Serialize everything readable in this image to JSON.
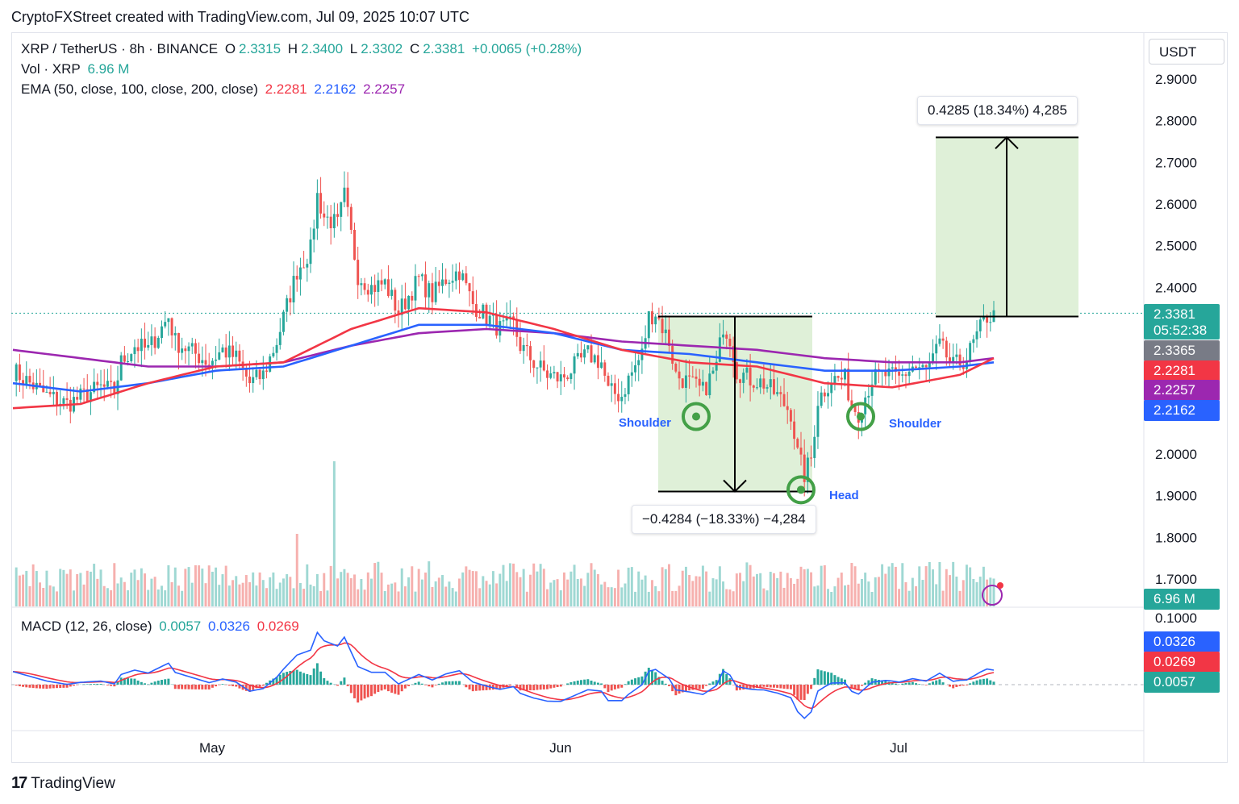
{
  "attribution": "CryptoFXStreet created with TradingView.com, Jul 09, 2025 10:07 UTC",
  "footer_logo": "TradingView",
  "currency_button": "USDT",
  "legend": {
    "symbol": "XRP / TetherUS · 8h · BINANCE",
    "o_label": "O",
    "o_value": "2.3315",
    "h_label": "H",
    "h_value": "2.3400",
    "l_label": "L",
    "l_value": "2.3302",
    "c_label": "C",
    "c_value": "2.3381",
    "change": "+0.0065 (+0.28%)",
    "vol_label": "Vol · XRP",
    "vol_value": "6.96 M",
    "ema_label": "EMA (50, close, 100, close, 200, close)",
    "ema50": "2.2281",
    "ema100": "2.2162",
    "ema200": "2.2257",
    "macd_label": "MACD (12, 26, close)",
    "macd_hist": "0.0057",
    "macd_line": "0.0326",
    "macd_signal": "0.0269"
  },
  "price_tags": {
    "last": "2.3381",
    "countdown": "05:52:38",
    "gray": "2.3365",
    "ema50": "2.2281",
    "ema200": "2.2257",
    "ema100": "2.2162",
    "volume": "6.96 M",
    "macd_line": "0.0326",
    "macd_signal": "0.0269",
    "macd_hist": "0.0057"
  },
  "callouts": {
    "up": "0.4285 (18.34%) 4,285",
    "down": "−0.4284 (−18.33%) −4,284"
  },
  "annotations": {
    "shoulder_left": "Shoulder",
    "shoulder_right": "Shoulder",
    "head": "Head"
  },
  "colors": {
    "up": "#26a69a",
    "down": "#ef5350",
    "ema50": "#f23645",
    "ema100": "#2962ff",
    "ema200": "#9c27b0",
    "macd_line": "#2962ff",
    "macd_signal": "#f23645",
    "zone_fill": "#dff0d8",
    "circle": "#43a047"
  },
  "chart_data": {
    "type": "candlestick",
    "pair": "XRP / TetherUS",
    "interval": "8h",
    "exchange": "BINANCE",
    "y_axis": {
      "ticks": [
        "2.9000",
        "2.8000",
        "2.7000",
        "2.6000",
        "2.5000",
        "2.4000",
        "2.3000",
        "2.2000",
        "2.1000",
        "2.0000",
        "1.9000",
        "1.8000",
        "1.7000"
      ],
      "range": [
        1.68,
        2.96
      ]
    },
    "macd_axis": {
      "ticks": [
        "0.1000"
      ]
    },
    "x_axis": {
      "ticks": [
        "May",
        "Jun",
        "Jul"
      ]
    },
    "price_path": [
      [
        0,
        2.2
      ],
      [
        10,
        2.14
      ],
      [
        16,
        2.12
      ],
      [
        26,
        2.16
      ],
      [
        30,
        2.15
      ],
      [
        32,
        2.22
      ],
      [
        36,
        2.26
      ],
      [
        40,
        2.25
      ],
      [
        46,
        2.33
      ],
      [
        48,
        2.27
      ],
      [
        52,
        2.25
      ],
      [
        58,
        2.22
      ],
      [
        62,
        2.25
      ],
      [
        66,
        2.23
      ],
      [
        70,
        2.17
      ],
      [
        74,
        2.19
      ],
      [
        78,
        2.27
      ],
      [
        84,
        2.44
      ],
      [
        88,
        2.49
      ],
      [
        90,
        2.62
      ],
      [
        92,
        2.57
      ],
      [
        96,
        2.55
      ],
      [
        98,
        2.62
      ],
      [
        102,
        2.43
      ],
      [
        106,
        2.4
      ],
      [
        110,
        2.41
      ],
      [
        114,
        2.34
      ],
      [
        120,
        2.42
      ],
      [
        124,
        2.38
      ],
      [
        128,
        2.42
      ],
      [
        132,
        2.44
      ],
      [
        136,
        2.36
      ],
      [
        140,
        2.33
      ],
      [
        144,
        2.3
      ],
      [
        148,
        2.31
      ],
      [
        150,
        2.26
      ],
      [
        154,
        2.22
      ],
      [
        158,
        2.19
      ],
      [
        162,
        2.18
      ],
      [
        166,
        2.21
      ],
      [
        170,
        2.24
      ],
      [
        174,
        2.22
      ],
      [
        176,
        2.15
      ],
      [
        180,
        2.14
      ],
      [
        182,
        2.18
      ],
      [
        186,
        2.24
      ],
      [
        188,
        2.33
      ],
      [
        190,
        2.34
      ],
      [
        194,
        2.27
      ],
      [
        196,
        2.19
      ],
      [
        200,
        2.17
      ],
      [
        204,
        2.15
      ],
      [
        208,
        2.21
      ],
      [
        210,
        2.31
      ],
      [
        212,
        2.28
      ],
      [
        214,
        2.2
      ],
      [
        218,
        2.18
      ],
      [
        222,
        2.17
      ],
      [
        226,
        2.14
      ],
      [
        230,
        2.1
      ],
      [
        232,
        2.0
      ],
      [
        234,
        1.95
      ],
      [
        236,
        1.99
      ],
      [
        238,
        2.13
      ],
      [
        242,
        2.18
      ],
      [
        246,
        2.18
      ],
      [
        248,
        2.12
      ],
      [
        250,
        2.1
      ],
      [
        254,
        2.18
      ],
      [
        258,
        2.19
      ],
      [
        262,
        2.18
      ],
      [
        266,
        2.21
      ],
      [
        270,
        2.2
      ],
      [
        274,
        2.26
      ],
      [
        278,
        2.21
      ],
      [
        282,
        2.23
      ],
      [
        286,
        2.3
      ],
      [
        288,
        2.33
      ],
      [
        290,
        2.33
      ]
    ],
    "volume_spikes": [
      [
        95,
        18.0
      ],
      [
        84,
        9.0
      ]
    ],
    "ema50_path": [
      [
        0,
        2.11
      ],
      [
        20,
        2.12
      ],
      [
        40,
        2.17
      ],
      [
        60,
        2.21
      ],
      [
        80,
        2.22
      ],
      [
        100,
        2.3
      ],
      [
        120,
        2.35
      ],
      [
        140,
        2.34
      ],
      [
        160,
        2.3
      ],
      [
        180,
        2.25
      ],
      [
        200,
        2.22
      ],
      [
        220,
        2.21
      ],
      [
        240,
        2.17
      ],
      [
        260,
        2.16
      ],
      [
        280,
        2.19
      ],
      [
        290,
        2.23
      ]
    ],
    "ema100_path": [
      [
        0,
        2.17
      ],
      [
        20,
        2.15
      ],
      [
        40,
        2.17
      ],
      [
        60,
        2.2
      ],
      [
        80,
        2.21
      ],
      [
        100,
        2.26
      ],
      [
        120,
        2.31
      ],
      [
        140,
        2.31
      ],
      [
        160,
        2.29
      ],
      [
        180,
        2.25
      ],
      [
        200,
        2.24
      ],
      [
        220,
        2.22
      ],
      [
        240,
        2.2
      ],
      [
        260,
        2.2
      ],
      [
        280,
        2.21
      ],
      [
        290,
        2.22
      ]
    ],
    "ema200_path": [
      [
        0,
        2.25
      ],
      [
        20,
        2.23
      ],
      [
        40,
        2.21
      ],
      [
        60,
        2.21
      ],
      [
        80,
        2.22
      ],
      [
        100,
        2.26
      ],
      [
        120,
        2.29
      ],
      [
        140,
        2.3
      ],
      [
        160,
        2.29
      ],
      [
        180,
        2.27
      ],
      [
        200,
        2.26
      ],
      [
        220,
        2.25
      ],
      [
        240,
        2.23
      ],
      [
        260,
        2.22
      ],
      [
        280,
        2.22
      ],
      [
        290,
        2.23
      ]
    ],
    "measure_down": {
      "from": 2.33,
      "to": 1.91
    },
    "measure_up": {
      "from": 2.33,
      "to": 2.76
    },
    "head_and_shoulders": {
      "left_shoulder": 2.09,
      "head": 1.92,
      "right_shoulder": 2.09,
      "neckline": 2.33
    }
  }
}
